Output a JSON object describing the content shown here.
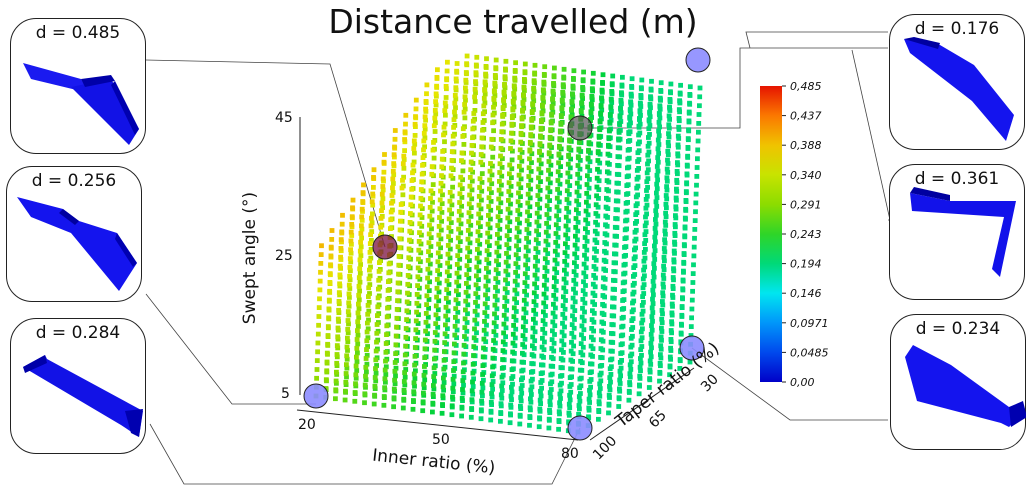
{
  "chart_data": {
    "type": "scatter",
    "title": "Distance travelled (m)",
    "axes": {
      "x": {
        "label": "Inner ratio (%)",
        "ticks": [
          "20",
          "50",
          "80"
        ],
        "range": [
          20,
          80
        ]
      },
      "y": {
        "label": "Swept angle (°)",
        "ticks": [
          "5",
          "25",
          "45"
        ],
        "range": [
          5,
          45
        ]
      },
      "z": {
        "label": "Taper ratio (%)",
        "ticks": [
          "30",
          "65",
          "100"
        ],
        "range": [
          30,
          100
        ]
      }
    },
    "colorbar": {
      "ticks": [
        "0,485",
        "0,437",
        "0,388",
        "0,340",
        "0,291",
        "0,243",
        "0,194",
        "0,146",
        "0,0971",
        "0,0485",
        "0,00"
      ],
      "range": [
        0,
        0.485
      ]
    },
    "highlighted_designs": [
      {
        "label": "d = 0.485",
        "inner_ratio": 20,
        "swept_angle": 45,
        "taper_ratio": 30
      },
      {
        "label": "d = 0.256",
        "inner_ratio": 20,
        "swept_angle": 5,
        "taper_ratio": 100
      },
      {
        "label": "d = 0.284",
        "inner_ratio": 80,
        "swept_angle": 5,
        "taper_ratio": 100
      },
      {
        "label": "d = 0.176",
        "inner_ratio": 80,
        "swept_angle": 45,
        "taper_ratio": 30
      },
      {
        "label": "d = 0.361",
        "inner_ratio": 50,
        "swept_angle": 45,
        "taper_ratio": 30
      },
      {
        "label": "d = 0.234",
        "inner_ratio": 80,
        "swept_angle": 5,
        "taper_ratio": 30
      }
    ]
  },
  "panels": {
    "left": [
      "d = 0.485",
      "d = 0.256",
      "d = 0.284"
    ],
    "right": [
      "d = 0.176",
      "d = 0.361",
      "d = 0.234"
    ]
  },
  "colors": {
    "wing": "#1010e6",
    "wing_dark": "#0000a0",
    "marker_open": "#8c8cff",
    "marker_dark": "#505050"
  }
}
